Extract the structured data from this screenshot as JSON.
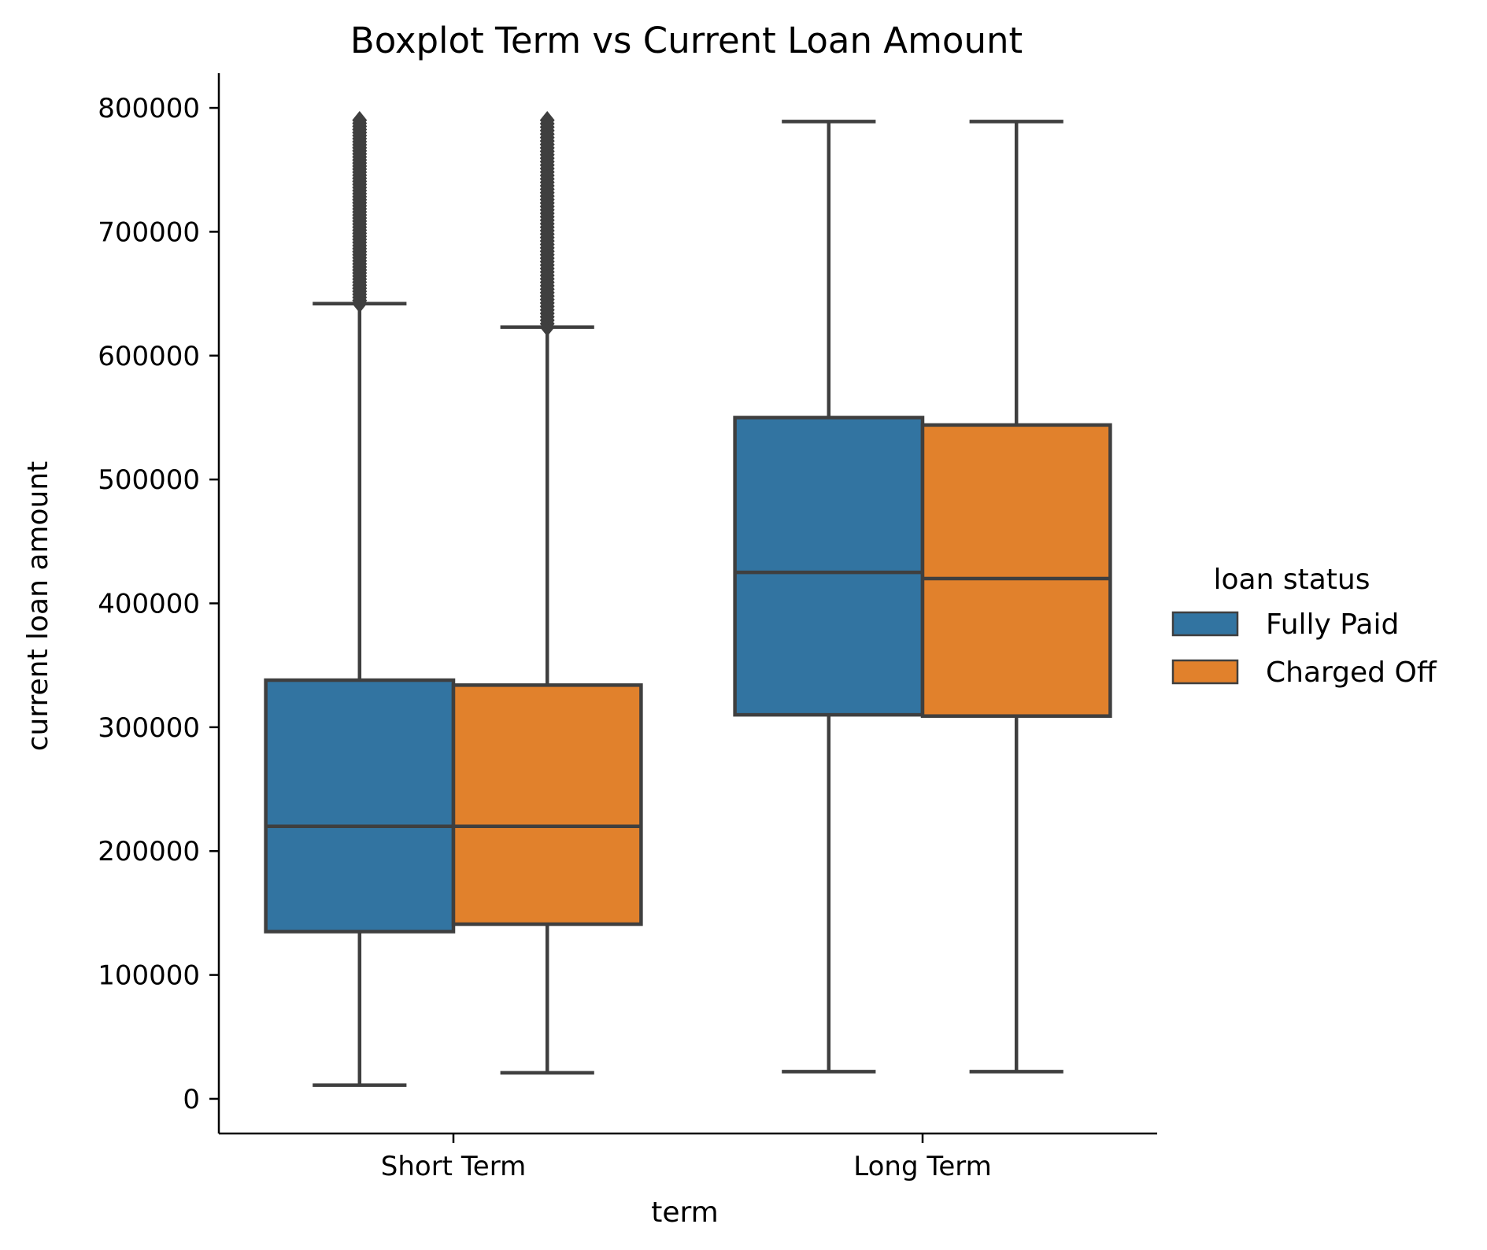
{
  "chart_data": {
    "type": "boxplot",
    "title": "Boxplot Term vs Current Loan Amount",
    "xlabel": "term",
    "ylabel": "current loan amount",
    "categories": [
      "Short Term",
      "Long Term"
    ],
    "ylim": [
      -28000,
      828000
    ],
    "yticks": [
      0,
      100000,
      200000,
      300000,
      400000,
      500000,
      600000,
      700000,
      800000
    ],
    "yticklabels": [
      "0",
      "100000",
      "200000",
      "300000",
      "400000",
      "500000",
      "600000",
      "700000",
      "800000"
    ],
    "grid": false,
    "legend": {
      "title": "loan status",
      "position": "right"
    },
    "series": [
      {
        "name": "Fully Paid",
        "color": "#3274a1",
        "boxes": [
          {
            "category": "Short Term",
            "whisker_low": 11000,
            "q1": 135000,
            "median": 220000,
            "q3": 338000,
            "whisker_high": 642000,
            "outlier_range": [
              642000,
              790000
            ]
          },
          {
            "category": "Long Term",
            "whisker_low": 22000,
            "q1": 310000,
            "median": 425000,
            "q3": 550000,
            "whisker_high": 789000
          }
        ]
      },
      {
        "name": "Charged Off",
        "color": "#e1812c",
        "boxes": [
          {
            "category": "Short Term",
            "whisker_low": 21000,
            "q1": 141000,
            "median": 220000,
            "q3": 334000,
            "whisker_high": 623000,
            "outlier_range": [
              623000,
              790000
            ]
          },
          {
            "category": "Long Term",
            "whisker_low": 22000,
            "q1": 309000,
            "median": 420000,
            "q3": 544000,
            "whisker_high": 789000
          }
        ]
      }
    ]
  }
}
